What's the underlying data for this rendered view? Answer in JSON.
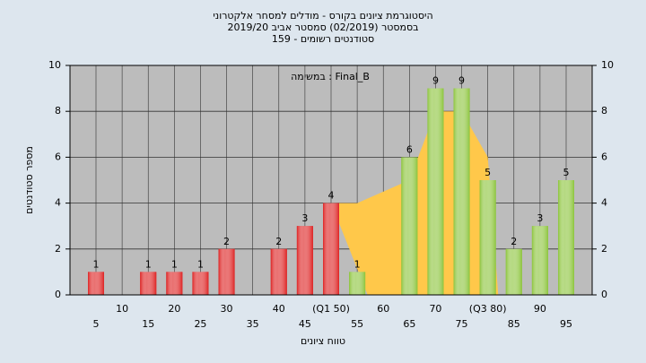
{
  "chart_data": {
    "type": "bar",
    "title": [
      "היסטוגרמת ציונים בקורס - מודלים למסחר אלקטרוני",
      "בסמסטר  (02/2019)  סמסטר אביב 2019/20",
      "סטודנטים רשומים - 159"
    ],
    "annotation": "במשימה : Final_B",
    "ylabel": "מספר סטודנטים",
    "xlabel": "טווח ציונים",
    "categories": [
      "5",
      "10",
      "15",
      "20",
      "25",
      "30",
      "35",
      "40",
      "45",
      "(Q1 50)",
      "55",
      "60",
      "65",
      "70",
      "75",
      "(Q3 80)",
      "85",
      "90",
      "95"
    ],
    "values": [
      1,
      null,
      1,
      1,
      1,
      2,
      null,
      2,
      3,
      4,
      1,
      null,
      6,
      9,
      9,
      5,
      2,
      3,
      5
    ],
    "bar_colors": [
      "#dd2222",
      "#dd2222",
      "#dd2222",
      "#dd2222",
      "#dd2222",
      "#dd2222",
      "#dd2222",
      "#dd2222",
      "#dd2222",
      "#dd2222",
      "#8cc43c",
      "#8cc43c",
      "#8cc43c",
      "#8cc43c",
      "#8cc43c",
      "#8cc43c",
      "#8cc43c",
      "#8cc43c",
      "#8cc43c"
    ],
    "area": {
      "color": "#ffc84a",
      "x": [
        50,
        55,
        65,
        70,
        75,
        80,
        82,
        57
      ],
      "y": [
        4,
        4,
        5,
        8,
        8,
        6,
        0,
        0
      ]
    },
    "ylim": [
      0,
      10
    ],
    "yticks": [
      0,
      2,
      4,
      6,
      8,
      10
    ],
    "y2lim": [
      0,
      10
    ],
    "y2ticks": [
      0,
      2,
      4,
      6,
      8,
      10
    ],
    "grid": true
  }
}
